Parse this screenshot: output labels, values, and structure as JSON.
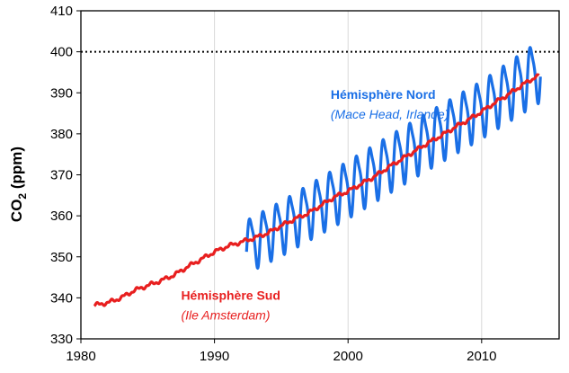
{
  "chart_data": {
    "type": "line",
    "ylabel_main": "CO",
    "ylabel_sub": "2",
    "ylabel_unit": " (ppm)",
    "xlim": [
      1980,
      2015.8
    ],
    "ylim": [
      330,
      410
    ],
    "x_ticks": [
      "1980",
      "1990",
      "2000",
      "2010"
    ],
    "y_ticks": [
      "330",
      "340",
      "350",
      "360",
      "370",
      "380",
      "390",
      "400",
      "410"
    ],
    "grid": "vertical",
    "reference_line": {
      "y": 400,
      "style": "dotted"
    },
    "series": [
      {
        "name": "Hémisphère Nord",
        "subtitle": "(Mace Head, Irlande)",
        "color": "#1a6fe6",
        "x_start": 1992.4,
        "x_end": 2014.4,
        "trend_points": [
          [
            1992.4,
            353.0
          ],
          [
            1995,
            357.5
          ],
          [
            2000,
            367.0
          ],
          [
            2005,
            377.0
          ],
          [
            2010,
            386.5
          ],
          [
            2014.4,
            396.0
          ]
        ],
        "seasonal_amplitude": [
          [
            1992.4,
            6.0
          ],
          [
            2000,
            6.5
          ],
          [
            2010,
            6.5
          ],
          [
            2014.4,
            7.0
          ]
        ]
      },
      {
        "name": "Hémisphère Sud",
        "subtitle": "(Ile Amsterdam)",
        "color": "#e81f1f",
        "x_start": 1981.0,
        "x_end": 2014.3,
        "points": [
          [
            1981.0,
            338.2
          ],
          [
            1982.0,
            338.8
          ],
          [
            1983.0,
            340.0
          ],
          [
            1984.0,
            341.8
          ],
          [
            1985.0,
            343.0
          ],
          [
            1986.0,
            344.2
          ],
          [
            1987.0,
            345.6
          ],
          [
            1988.0,
            347.6
          ],
          [
            1989.0,
            349.4
          ],
          [
            1990.0,
            351.2
          ],
          [
            1991.0,
            352.6
          ],
          [
            1992.0,
            353.6
          ],
          [
            1993.0,
            354.6
          ],
          [
            1994.0,
            355.8
          ],
          [
            1995.0,
            357.6
          ],
          [
            1996.0,
            359.2
          ],
          [
            1997.0,
            360.6
          ],
          [
            1998.0,
            362.6
          ],
          [
            1999.0,
            364.6
          ],
          [
            2000.0,
            366.0
          ],
          [
            2001.0,
            367.8
          ],
          [
            2002.0,
            369.6
          ],
          [
            2003.0,
            371.8
          ],
          [
            2004.0,
            373.8
          ],
          [
            2005.0,
            375.8
          ],
          [
            2006.0,
            377.8
          ],
          [
            2007.0,
            379.6
          ],
          [
            2008.0,
            381.6
          ],
          [
            2009.0,
            383.4
          ],
          [
            2010.0,
            385.4
          ],
          [
            2011.0,
            387.6
          ],
          [
            2012.0,
            389.6
          ],
          [
            2013.0,
            391.8
          ],
          [
            2014.0,
            393.8
          ],
          [
            2014.3,
            394.0
          ]
        ]
      }
    ],
    "annotations": [
      {
        "title": "Hémisphère Nord",
        "subtitle": "(Mace Head, Irlande)",
        "color": "#1a6fe6",
        "anchor": [
          1998.7,
          388.5
        ]
      },
      {
        "title": "Hémisphère Sud",
        "subtitle": "(Ile Amsterdam)",
        "color": "#e81f1f",
        "anchor": [
          1987.5,
          339.5
        ]
      }
    ]
  }
}
